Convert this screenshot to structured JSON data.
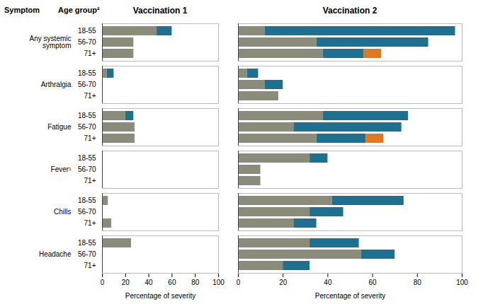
{
  "chart_data": [
    {
      "type": "bar",
      "orientation": "horizontal",
      "stacked": true,
      "title": "Vaccination 1",
      "xlabel": "Percentage of severity",
      "group_header": "Symptom",
      "category_header": "Age group²",
      "groups": [
        "Any systemic\nsymptom",
        "Arthralgia",
        "Fatigue",
        "Fever¹",
        "Chills",
        "Headache"
      ],
      "categories": [
        "18-55",
        "56-70",
        "71+"
      ],
      "xlim": [
        0,
        100
      ],
      "xticks": [
        0,
        20,
        40,
        60,
        80,
        100
      ],
      "series": [
        {
          "color": "#8b8b7a",
          "values": [
            [
              47,
              27,
              27
            ],
            [
              4,
              0,
              0
            ],
            [
              20,
              28,
              28
            ],
            [
              0,
              0,
              0
            ],
            [
              5,
              0,
              8
            ],
            [
              25,
              0,
              0
            ]
          ]
        },
        {
          "color": "#1e7090",
          "values": [
            [
              13,
              0,
              0
            ],
            [
              6,
              0,
              0
            ],
            [
              7,
              0,
              0
            ],
            [
              0,
              0,
              0
            ],
            [
              0,
              0,
              0
            ],
            [
              0,
              0,
              0
            ]
          ]
        },
        {
          "color": "#e07820",
          "values": [
            [
              0,
              0,
              0
            ],
            [
              0,
              0,
              0
            ],
            [
              0,
              0,
              0
            ],
            [
              0,
              0,
              0
            ],
            [
              0,
              0,
              0
            ],
            [
              0,
              0,
              0
            ]
          ]
        }
      ]
    },
    {
      "type": "bar",
      "orientation": "horizontal",
      "stacked": true,
      "title": "Vaccination 2",
      "xlabel": "Percentage of severity",
      "groups": [
        "Any systemic\nsymptom",
        "Arthralgia",
        "Fatigue",
        "Fever¹",
        "Chills",
        "Headache"
      ],
      "categories": [
        "18-55",
        "56-70",
        "71+"
      ],
      "xlim": [
        0,
        100
      ],
      "xticks": [
        0,
        20,
        40,
        60,
        80,
        100
      ],
      "tick_labels": "x",
      "series": [
        {
          "color": "#8b8b7a",
          "values": [
            [
              12,
              35,
              38
            ],
            [
              4,
              12,
              18
            ],
            [
              38,
              25,
              35
            ],
            [
              32,
              10,
              10
            ],
            [
              42,
              32,
              25
            ],
            [
              32,
              55,
              20
            ]
          ]
        },
        {
          "color": "#1e7090",
          "values": [
            [
              85,
              50,
              18
            ],
            [
              5,
              8,
              0
            ],
            [
              38,
              48,
              22
            ],
            [
              8,
              0,
              0
            ],
            [
              32,
              15,
              10
            ],
            [
              22,
              15,
              12
            ]
          ]
        },
        {
          "color": "#e07820",
          "values": [
            [
              0,
              0,
              8
            ],
            [
              0,
              0,
              0
            ],
            [
              0,
              0,
              8
            ],
            [
              0,
              0,
              0
            ],
            [
              0,
              0,
              0
            ],
            [
              0,
              0,
              0
            ]
          ]
        }
      ]
    }
  ]
}
